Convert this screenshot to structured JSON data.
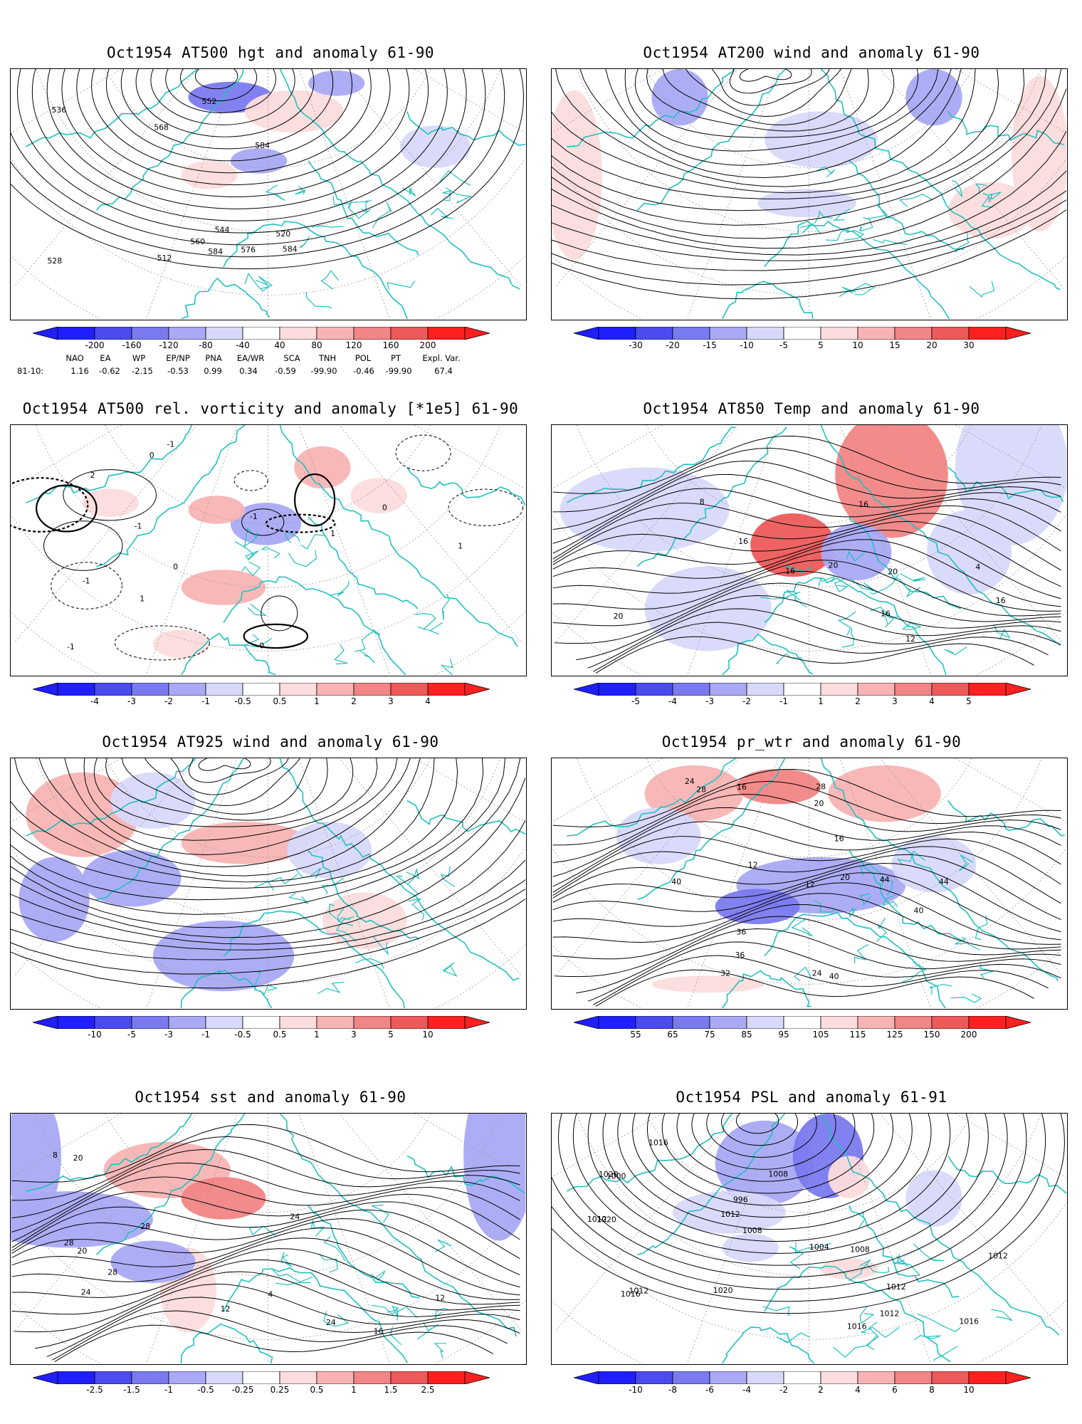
{
  "panels": [
    {
      "id": "hgt500",
      "title": "Oct1954 AT500 hgt and anomaly 61-90",
      "colorbar": [
        "-200",
        "-160",
        "-120",
        "-80",
        "-40",
        "40",
        "80",
        "120",
        "160",
        "200"
      ],
      "contour_labels": [
        "512",
        "520",
        "528",
        "536",
        "544",
        "552",
        "560",
        "568",
        "576",
        "584",
        "584",
        "584"
      ],
      "fields": {
        "shading": "anomaly",
        "lines": "height"
      }
    },
    {
      "id": "wind200",
      "title": "Oct1954 AT200 wind and anomaly 61-90",
      "colorbar": [
        "-30",
        "-20",
        "-15",
        "-10",
        "-5",
        "5",
        "10",
        "15",
        "20",
        "30"
      ],
      "contour_labels": [],
      "fields": {
        "shading": "anomaly",
        "lines": "streamlines"
      }
    },
    {
      "id": "vort500",
      "title": "Oct1954 AT500 rel. vorticity and anomaly [*1e5] 61-90",
      "colorbar": [
        "-4",
        "-3",
        "-2",
        "-1",
        "-0.5",
        "0.5",
        "1",
        "2",
        "3",
        "4"
      ],
      "contour_labels": [
        "-1",
        "0",
        "-1",
        "0",
        "2",
        "1",
        "-1",
        "1",
        "0",
        "-1",
        "0",
        "-1",
        "1"
      ],
      "fields": {
        "shading": "anomaly",
        "lines": "vorticity"
      }
    },
    {
      "id": "t850",
      "title": "Oct1954 AT850 Temp and anomaly 61-90",
      "colorbar": [
        "-5",
        "-4",
        "-3",
        "-2",
        "-1",
        "1",
        "2",
        "3",
        "4",
        "5"
      ],
      "contour_labels": [
        "16",
        "16",
        "12",
        "16",
        "20",
        "20",
        "16",
        "8",
        "4",
        "20",
        "16"
      ],
      "fields": {
        "shading": "anomaly",
        "lines": "temperature"
      }
    },
    {
      "id": "wind925",
      "title": "Oct1954 AT925 wind and anomaly 61-90",
      "colorbar": [
        "-10",
        "-5",
        "-3",
        "-1",
        "-0.5",
        "0.5",
        "1",
        "3",
        "5",
        "10"
      ],
      "contour_labels": [],
      "fields": {
        "shading": "anomaly",
        "lines": "streamlines"
      }
    },
    {
      "id": "prwtr",
      "title": "Oct1954 pr_wtr and anomaly 61-90",
      "colorbar": [
        "55",
        "65",
        "75",
        "85",
        "95",
        "105",
        "115",
        "125",
        "150",
        "200"
      ],
      "contour_labels": [
        "24",
        "28",
        "12",
        "16",
        "20",
        "24",
        "12",
        "16",
        "20",
        "28",
        "32",
        "36",
        "40",
        "44",
        "40",
        "36",
        "40",
        "44"
      ],
      "fields": {
        "shading": "anomaly",
        "lines": "precipitable-water"
      }
    },
    {
      "id": "sst",
      "title": "Oct1954 sst and anomaly 61-90",
      "colorbar": [
        "-2.5",
        "-1.5",
        "-1",
        "-0.5",
        "-0.25",
        "0.25",
        "0.5",
        "1",
        "1.5",
        "2.5"
      ],
      "contour_labels": [
        "24",
        "28",
        "24",
        "16",
        "12",
        "20",
        "28",
        "28",
        "20",
        "4",
        "8",
        "12",
        "24"
      ],
      "fields": {
        "shading": "anomaly",
        "lines": "sst"
      }
    },
    {
      "id": "psl",
      "title": "Oct1954 PSL and anomaly 61-91",
      "colorbar": [
        "-10",
        "-8",
        "-6",
        "-4",
        "-2",
        "2",
        "4",
        "6",
        "8",
        "10"
      ],
      "contour_labels": [
        "1012",
        "1016",
        "1008",
        "1004",
        "1016",
        "1020",
        "1000",
        "996",
        "1008",
        "1012",
        "1016",
        "1020",
        "1020",
        "1016",
        "1012",
        "1008",
        "1012",
        "1012",
        "1012"
      ],
      "fields": {
        "shading": "anomaly",
        "lines": "sea-level-pressure"
      }
    }
  ],
  "teleconnection_indices": {
    "headers": [
      "NAO",
      "EA",
      "WP",
      "EP/NP",
      "PNA",
      "EA/WR",
      "SCA",
      "TNH",
      "POL",
      "PT",
      "Expl. Var."
    ],
    "row_label": "81-10:",
    "values": [
      "1.16",
      "-0.62",
      "-2.15",
      "-0.53",
      "0.99",
      "0.34",
      "-0.59",
      "-99.90",
      "-0.46",
      "-99.90",
      "67.4"
    ]
  },
  "colors": {
    "blue": [
      "#1f1fff",
      "#4b4bf0",
      "#7a7af0",
      "#a9a9f5",
      "#d8d8fb"
    ],
    "red": [
      "#fcdcdc",
      "#f8b4b4",
      "#f28585",
      "#ee5a5a",
      "#ff2020"
    ],
    "coast": "#20c0c0",
    "contour": "#000000"
  }
}
